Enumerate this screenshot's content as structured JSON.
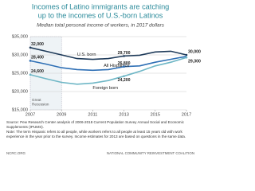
{
  "chart_data": {
    "type": "line",
    "title": [
      "Incomes of Latino immigrants are catching",
      "up to the incomes of U.S.-born Latinos"
    ],
    "subtitle": "Median total personal income of workers, in 2017 dollars",
    "x": [
      2007,
      2008,
      2009,
      2010,
      2011,
      2012,
      2013,
      2014,
      2015,
      2016,
      2017
    ],
    "xlim": [
      2007,
      2017
    ],
    "xticks": [
      2007,
      2009,
      2011,
      2013,
      2015,
      2017
    ],
    "ylim": [
      15000,
      35000
    ],
    "yticks": [
      {
        "value": 15000,
        "label": "$15,000"
      },
      {
        "value": 20000,
        "label": "$20,000"
      },
      {
        "value": 25000,
        "label": "$25,000"
      },
      {
        "value": 30000,
        "label": "$30,000"
      },
      {
        "value": 35000,
        "label": "$35,000"
      }
    ],
    "grid": true,
    "series": [
      {
        "name": "U.S. born",
        "color": "#1f3b5a",
        "values": [
          32000,
          31000,
          30000,
          29000,
          28800,
          29000,
          29700,
          29900,
          30800,
          31000,
          30000
        ],
        "value_labels": [
          "32,000",
          null,
          null,
          null,
          null,
          null,
          "29,700",
          null,
          null,
          null,
          "30,000"
        ]
      },
      {
        "name": "All Hispanics",
        "color": "#2e6fb5",
        "values": [
          28400,
          27500,
          26500,
          26000,
          25800,
          26000,
          26800,
          27000,
          28000,
          28800,
          29600
        ],
        "value_labels": [
          "28,400",
          null,
          null,
          null,
          null,
          null,
          "26,800",
          null,
          null,
          null,
          null
        ]
      },
      {
        "name": "Foreign born",
        "color": "#6fb7c6",
        "values": [
          24600,
          23500,
          22500,
          22000,
          22300,
          23000,
          24200,
          25500,
          27000,
          28000,
          29300
        ],
        "value_labels": [
          "24,600",
          null,
          null,
          null,
          null,
          null,
          "24,200",
          null,
          null,
          null,
          "29,300"
        ]
      }
    ],
    "shade_x": [
      2007,
      2009
    ],
    "shade_label": [
      "Great",
      "Recession"
    ],
    "source": "Source: Pew Research Center analysis of 2006-2018 Current Population Survey Annual Social and Economic Supplements (IPUMS).",
    "note": "Note: The term Hispanic refers to all people, while workers refers to all people at least 15 years old with work experience in the year prior to the survey. Income estimates for 2013 are based on questions in the same data.",
    "footer_left": "NCRC.ORG",
    "footer_right": "NATIONAL COMMUNITY REINVESTMENT COALITION"
  }
}
